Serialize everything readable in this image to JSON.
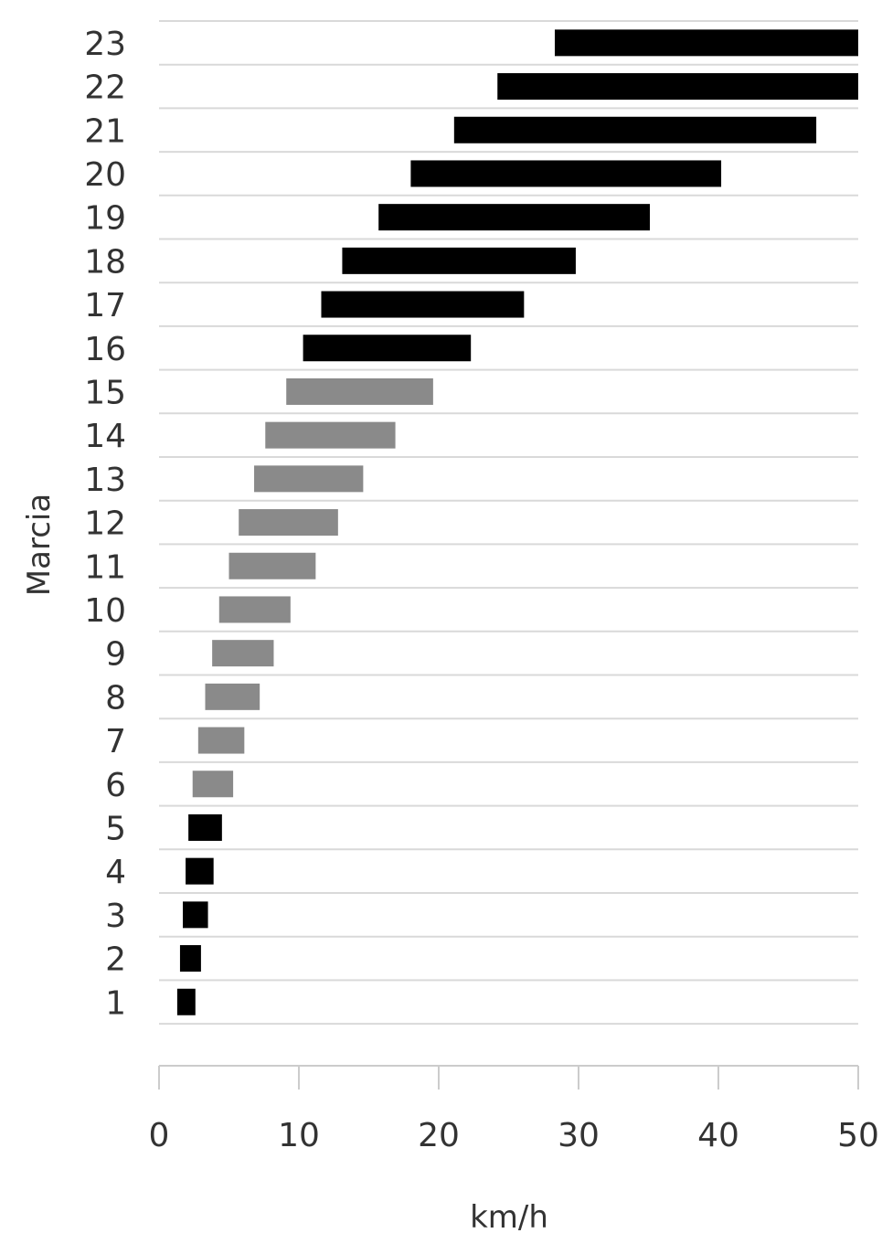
{
  "chart_data": {
    "type": "bar",
    "orientation": "horizontal",
    "subtype": "floating-range",
    "ylabel": "Marcia",
    "xlabel": "km/h",
    "categories": [
      "1",
      "2",
      "3",
      "4",
      "5",
      "6",
      "7",
      "8",
      "9",
      "10",
      "11",
      "12",
      "13",
      "14",
      "15",
      "16",
      "17",
      "18",
      "19",
      "20",
      "21",
      "22",
      "23"
    ],
    "ranges": [
      [
        1.3,
        2.6
      ],
      [
        1.5,
        3.0
      ],
      [
        1.7,
        3.5
      ],
      [
        1.9,
        3.9
      ],
      [
        2.1,
        4.5
      ],
      [
        2.4,
        5.3
      ],
      [
        2.8,
        6.1
      ],
      [
        3.3,
        7.2
      ],
      [
        3.8,
        8.2
      ],
      [
        4.3,
        9.4
      ],
      [
        5.0,
        11.2
      ],
      [
        5.7,
        12.8
      ],
      [
        6.8,
        14.6
      ],
      [
        7.6,
        16.9
      ],
      [
        9.1,
        19.6
      ],
      [
        10.3,
        22.3
      ],
      [
        11.6,
        26.1
      ],
      [
        13.1,
        29.8
      ],
      [
        15.7,
        35.1
      ],
      [
        18.0,
        40.2
      ],
      [
        21.1,
        47.0
      ],
      [
        24.2,
        50.0
      ],
      [
        28.3,
        50.0
      ]
    ],
    "colors": [
      "black",
      "black",
      "black",
      "black",
      "black",
      "gray",
      "gray",
      "gray",
      "gray",
      "gray",
      "gray",
      "gray",
      "gray",
      "gray",
      "gray",
      "black",
      "black",
      "black",
      "black",
      "black",
      "black",
      "black",
      "black"
    ],
    "palette": {
      "black": "#000000",
      "gray": "#8a8a8a"
    },
    "xlim": [
      0,
      50
    ],
    "xticks": [
      "0",
      "10",
      "20",
      "30",
      "40",
      "50"
    ],
    "grid": true,
    "legend": "none"
  }
}
